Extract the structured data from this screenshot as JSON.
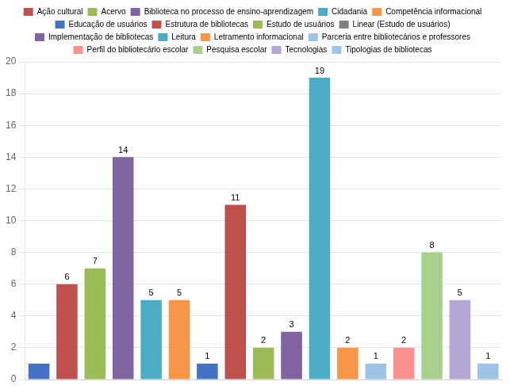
{
  "chart_data": {
    "type": "bar",
    "categories": [
      null,
      null,
      null,
      null,
      null,
      null,
      null,
      null,
      null,
      null,
      null,
      null,
      null,
      null,
      null,
      null,
      null
    ],
    "values": [
      1,
      6,
      7,
      14,
      5,
      5,
      1,
      11,
      2,
      3,
      19,
      2,
      1,
      2,
      8,
      5,
      1
    ],
    "colors": [
      "#4472C4",
      "#C0504D",
      "#9BBB59",
      "#8064A2",
      "#4BACC6",
      "#F79646",
      "#4472C4",
      "#C0504D",
      "#9BBB59",
      "#8064A2",
      "#4BACC6",
      "#F79646",
      "#9DC3E6",
      "#FA9090",
      "#A9D18E",
      "#B4A7D6",
      "#9DC3E6"
    ],
    "data_labels": true,
    "value_labels": [
      null,
      "6",
      "7",
      "14",
      "5",
      "5",
      "1",
      "11",
      "2",
      "3",
      "19",
      "2",
      "1",
      "2",
      "8",
      "5",
      "1"
    ],
    "legend": "top",
    "legend_entries": [
      {
        "name": "Ação cultural",
        "color": "#C0504D"
      },
      {
        "name": "Acervo",
        "color": "#9BBB59"
      },
      {
        "name": "Biblioteca no processo de ensino-aprendizagem",
        "color": "#8064A2"
      },
      {
        "name": "Cidadania",
        "color": "#4BACC6"
      },
      {
        "name": "Competência informacional",
        "color": "#F79646"
      },
      {
        "name": "Educação de usuários",
        "color": "#4472C4"
      },
      {
        "name": "Estrutura de bibliotecas",
        "color": "#C0504D"
      },
      {
        "name": "Estudo de usuários",
        "color": "#9BBB59"
      },
      {
        "name": "Linear (Estudo de usuários)",
        "color": "#808080"
      },
      {
        "name": "Implementação de bibliotecas",
        "color": "#8064A2"
      },
      {
        "name": "Leitura",
        "color": "#4BACC6"
      },
      {
        "name": "Letramento informacional",
        "color": "#F79646"
      },
      {
        "name": "Parceria entre bibliotecários e professores",
        "color": "#9DC3E6"
      },
      {
        "name": "Perfil do bibliotecário escolar",
        "color": "#FA9090"
      },
      {
        "name": "Pesquisa escolar",
        "color": "#A9D18E"
      },
      {
        "name": "Tecnologias",
        "color": "#B4A7D6"
      },
      {
        "name": "Tipologias de bibliotecas",
        "color": "#9DC3E6"
      }
    ],
    "ylim": [
      0,
      20
    ],
    "yticks": [
      0,
      2,
      4,
      6,
      8,
      10,
      12,
      14,
      16,
      18,
      20
    ],
    "grid": true,
    "tick_labels": "y"
  }
}
